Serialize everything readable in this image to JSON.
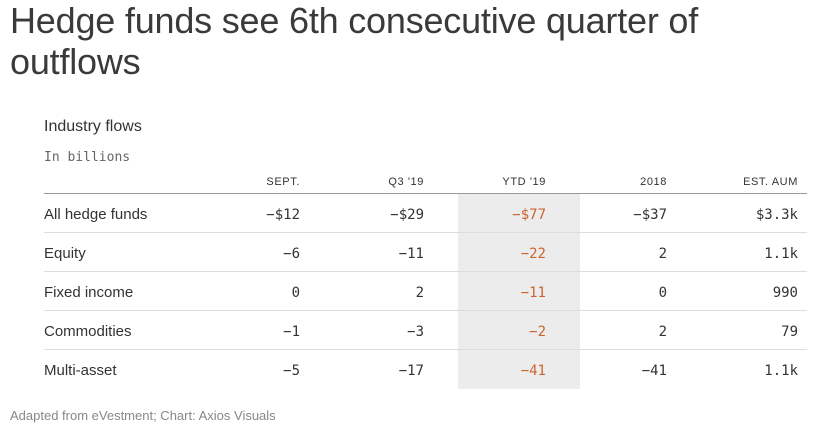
{
  "headline": "Hedge funds see 6th consecutive quarter of outflows",
  "source": "Adapted from eVestment; Chart: Axios Visuals",
  "colors": {
    "ytd_highlight_text": "#c9642f",
    "ytd_highlight_background": "#ececec"
  },
  "chart_data": {
    "type": "table",
    "title": "Industry flows",
    "subtitle": "In billions",
    "columns": [
      "SEPT.",
      "Q3 '19",
      "YTD '19",
      "2018",
      "EST. AUM"
    ],
    "highlighted_column": "YTD '19",
    "rows": [
      {
        "label": "All hedge funds",
        "values": [
          "−$12",
          "−$29",
          "−$77",
          "−$37",
          "$3.3k"
        ]
      },
      {
        "label": "Equity",
        "values": [
          "−6",
          "−11",
          "−22",
          "2",
          "1.1k"
        ]
      },
      {
        "label": "Fixed income",
        "values": [
          "0",
          "2",
          "−11",
          "0",
          "990"
        ]
      },
      {
        "label": "Commodities",
        "values": [
          "−1",
          "−3",
          "−2",
          "2",
          "79"
        ]
      },
      {
        "label": "Multi-asset",
        "values": [
          "−5",
          "−17",
          "−41",
          "−41",
          "1.1k"
        ]
      }
    ]
  }
}
